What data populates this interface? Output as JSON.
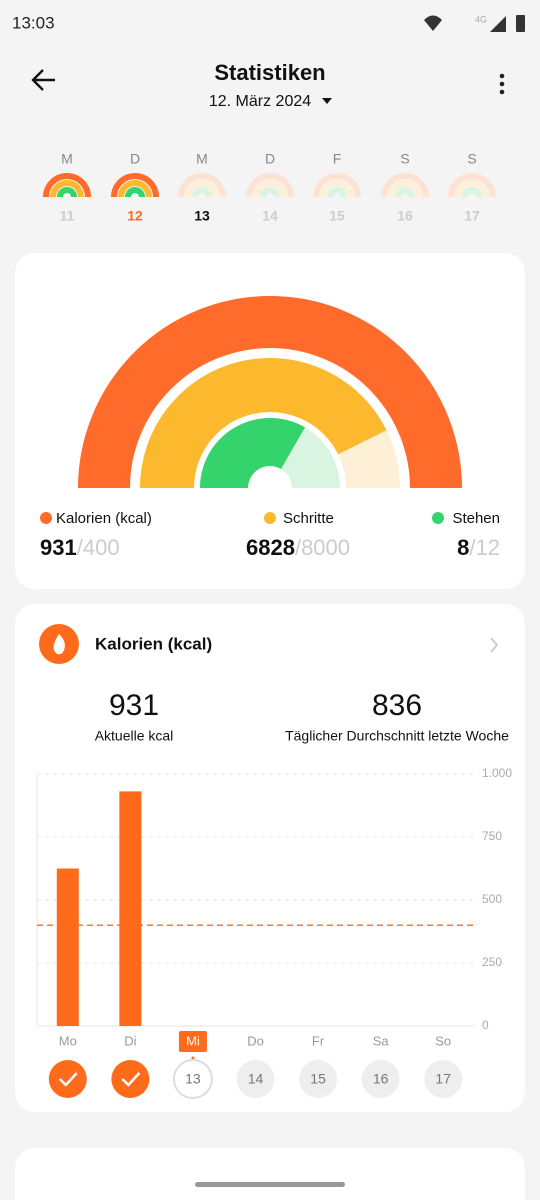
{
  "status_bar": {
    "time": "13:03",
    "network": "4G"
  },
  "header": {
    "title": "Statistiken",
    "date": "12. März 2024"
  },
  "week": [
    {
      "day": "M",
      "date": "11"
    },
    {
      "day": "D",
      "date": "12"
    },
    {
      "day": "M",
      "date": "13"
    },
    {
      "day": "D",
      "date": "14"
    },
    {
      "day": "F",
      "date": "15"
    },
    {
      "day": "S",
      "date": "16"
    },
    {
      "day": "S",
      "date": "17"
    }
  ],
  "rings": {
    "separator": "/",
    "metrics": [
      {
        "label": "Kalorien (kcal)",
        "value": 931,
        "goal": 400,
        "color": "#ff6b2b",
        "track": "#fde1d3"
      },
      {
        "label": "Schritte",
        "value": 6828,
        "goal": 8000,
        "color": "#fdb92e",
        "track": "#fdf0d6"
      },
      {
        "label": "Stehen",
        "value": 8,
        "goal": 12,
        "color": "#34d36b",
        "track": "#d9f5e1"
      }
    ]
  },
  "calories_card": {
    "title": "Kalorien (kcal)",
    "stats": [
      {
        "value": 931,
        "label": "Aktuelle kcal"
      },
      {
        "value": 836,
        "label": "Täglicher Durchschnitt letzte Woche"
      }
    ]
  },
  "chart_data": {
    "type": "bar",
    "categories": [
      "Mo",
      "Di",
      "Mi",
      "Do",
      "Fr",
      "Sa",
      "So"
    ],
    "values": [
      625,
      931,
      0,
      null,
      null,
      null,
      null
    ],
    "color": "#ff6b1a",
    "ylim": [
      0,
      1000
    ],
    "yticks": [
      0,
      250,
      500,
      750,
      {
        "value": 1000,
        "label": "1.000"
      }
    ],
    "grid": true,
    "reference_line": 400,
    "highlight": "Mi"
  },
  "day_buttons": {
    "dates": [
      null,
      null,
      "13",
      "14",
      "15",
      "16",
      "17"
    ],
    "completed": [
      true,
      true,
      false,
      false,
      false,
      false,
      false
    ]
  }
}
